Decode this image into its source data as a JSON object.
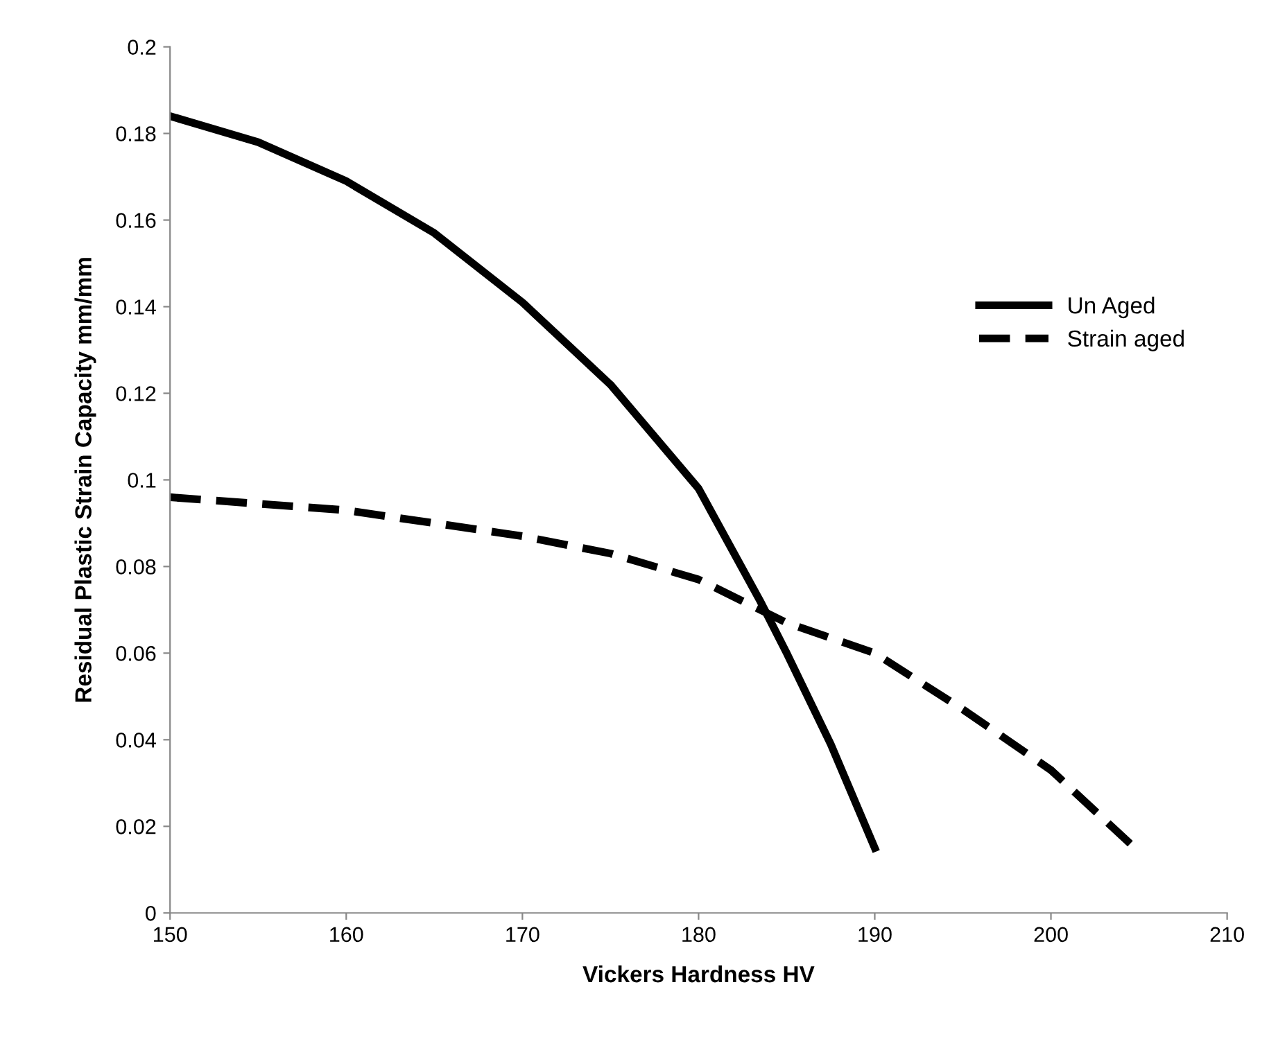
{
  "chart_data": {
    "type": "line",
    "xlabel": "Vickers Hardness HV",
    "ylabel": "Residual Plastic Strain Capacity mm/mm",
    "xlim": [
      150,
      210
    ],
    "xticks": [
      150,
      160,
      170,
      180,
      190,
      200,
      210
    ],
    "ylim": [
      0,
      0.2
    ],
    "yticks": [
      0,
      0.02,
      0.04,
      0.06,
      0.08,
      0.1,
      0.12,
      0.14,
      0.16,
      0.18,
      0.2
    ],
    "grid": false,
    "legend": "right",
    "marker": "none",
    "series": [
      {
        "name": "Un Aged",
        "color": "#000000",
        "line_style": "solid",
        "x": [
          150,
          155,
          160,
          165,
          170,
          175,
          180,
          183.5,
          185,
          187.5,
          190
        ],
        "values": [
          0.184,
          0.178,
          0.169,
          0.157,
          0.141,
          0.122,
          0.098,
          0.072,
          0.06,
          0.039,
          0.015
        ]
      },
      {
        "name": "Strain aged",
        "color": "#000000",
        "line_style": "dashed",
        "x": [
          150,
          160,
          170,
          175,
          180,
          185,
          190,
          195,
          200,
          204.5
        ],
        "values": [
          0.096,
          0.093,
          0.087,
          0.083,
          0.077,
          0.067,
          0.06,
          0.047,
          0.033,
          0.016
        ]
      }
    ]
  }
}
